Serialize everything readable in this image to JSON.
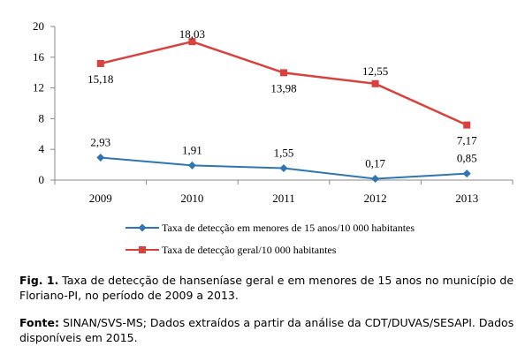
{
  "chart_data": {
    "type": "line",
    "x": [
      "2009",
      "2010",
      "2011",
      "2012",
      "2013"
    ],
    "ylim": [
      0,
      20
    ],
    "yticks": [
      "0",
      "4",
      "8",
      "12",
      "16",
      "20"
    ],
    "grid": false,
    "legend_position": "bottom",
    "series": [
      {
        "name": "Taxa de detecção em menores de 15 anos/10 000 habitantes",
        "values": [
          2.93,
          1.91,
          1.55,
          0.17,
          0.85
        ],
        "labels": [
          "2,93",
          "1,91",
          "1,55",
          "0,17",
          "0,85"
        ],
        "color": "#2E75B6",
        "marker": "diamond"
      },
      {
        "name": "Taxa de detecção geral/10 000 habitantes",
        "values": [
          15.18,
          18.03,
          13.98,
          12.55,
          7.17
        ],
        "labels": [
          "15,18",
          "18,03",
          "13,98",
          "12,55",
          "7,17"
        ],
        "color": "#D9413C",
        "marker": "square"
      }
    ]
  },
  "caption": {
    "fig_label": "Fig. 1.",
    "fig_text": " Taxa de detecção de hanseníase geral e em menores de 15 anos no município de Floriano-PI, no período de 2009 a 2013.",
    "source_label": "Fonte:",
    "source_text": " SINAN/SVS-MS; Dados extraídos a partir da análise da CDT/DUVAS/SESAPI. Dados disponíveis em 2015."
  }
}
